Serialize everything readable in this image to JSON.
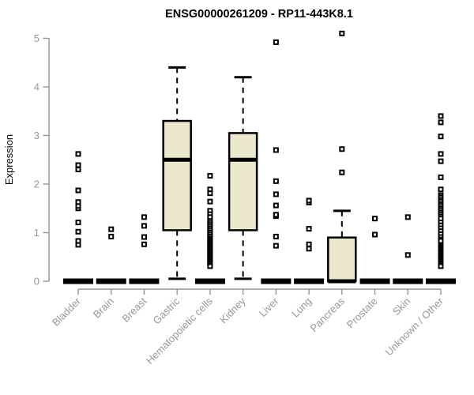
{
  "chart_data": {
    "type": "boxplot",
    "title": "ENSG00000261209 - RP11-443K8.1",
    "xlabel": "",
    "ylabel": "Expression",
    "ylim": [
      0,
      5
    ],
    "yticks": [
      0,
      1,
      2,
      3,
      4,
      5
    ],
    "grid": false,
    "legend": false,
    "categories": [
      "Bladder",
      "Brain",
      "Breast",
      "Gastric",
      "Hematopoietic cells",
      "Kidney",
      "Liver",
      "Lung",
      "Pancreas",
      "Prostate",
      "Skin",
      "Unknown / Other"
    ],
    "series": [
      {
        "name": "Bladder",
        "whisker_low": 0,
        "q1": 0,
        "median": 0,
        "q3": 0,
        "whisker_high": 0,
        "outliers": [
          0.75,
          0.83,
          1.02,
          1.21,
          1.5,
          1.55,
          1.63,
          1.87,
          2.3,
          2.39,
          2.62
        ]
      },
      {
        "name": "Brain",
        "whisker_low": 0,
        "q1": 0,
        "median": 0,
        "q3": 0,
        "whisker_high": 0,
        "outliers": [
          0.92,
          1.07
        ]
      },
      {
        "name": "Breast",
        "whisker_low": 0,
        "q1": 0,
        "median": 0,
        "q3": 0,
        "whisker_high": 0,
        "outliers": [
          0.76,
          0.91,
          1.14,
          1.32
        ]
      },
      {
        "name": "Gastric",
        "whisker_low": 0.05,
        "q1": 1.05,
        "median": 2.5,
        "q3": 3.3,
        "whisker_high": 4.4,
        "outliers": []
      },
      {
        "name": "Hematopoietic cells",
        "whisker_low": 0,
        "q1": 0,
        "median": 0,
        "q3": 0,
        "whisker_high": 0,
        "outliers": [
          2.17,
          1.89,
          1.81,
          1.64,
          1.45,
          1.38,
          1.32,
          1.24,
          1.2,
          1.16,
          1.12,
          1.08,
          1.04,
          1.0,
          0.96,
          0.92,
          0.88,
          0.85,
          0.82,
          0.79,
          0.76,
          0.73,
          0.7,
          0.67,
          0.64,
          0.61,
          0.58,
          0.55,
          0.52,
          0.49,
          0.46,
          0.43,
          0.4,
          0.37,
          0.34,
          0.31
        ]
      },
      {
        "name": "Kidney",
        "whisker_low": 0.05,
        "q1": 1.05,
        "median": 2.5,
        "q3": 3.05,
        "whisker_high": 4.2,
        "outliers": []
      },
      {
        "name": "Liver",
        "whisker_low": 0,
        "q1": 0,
        "median": 0,
        "q3": 0,
        "whisker_high": 0,
        "outliers": [
          0.73,
          0.92,
          1.34,
          1.37,
          1.56,
          1.79,
          2.06,
          2.7,
          4.92
        ]
      },
      {
        "name": "Lung",
        "whisker_low": 0,
        "q1": 0,
        "median": 0,
        "q3": 0,
        "whisker_high": 0,
        "outliers": [
          0.67,
          0.76,
          1.08,
          1.62,
          1.66
        ]
      },
      {
        "name": "Pancreas",
        "whisker_low": 0,
        "q1": 0,
        "median": 0,
        "q3": 0.9,
        "whisker_high": 1.45,
        "outliers": [
          2.24,
          2.72,
          5.1
        ]
      },
      {
        "name": "Prostate",
        "whisker_low": 0,
        "q1": 0,
        "median": 0,
        "q3": 0,
        "whisker_high": 0,
        "outliers": [
          0.96,
          1.29
        ]
      },
      {
        "name": "Skin",
        "whisker_low": 0,
        "q1": 0,
        "median": 0,
        "q3": 0,
        "whisker_high": 0,
        "outliers": [
          0.54,
          1.32
        ]
      },
      {
        "name": "Unknown / Other",
        "whisker_low": 0,
        "q1": 0,
        "median": 0,
        "q3": 0,
        "whisker_high": 0,
        "outliers": [
          3.4,
          3.27,
          2.98,
          2.62,
          2.47,
          2.14,
          1.89,
          1.77,
          1.73,
          1.69,
          1.65,
          1.61,
          1.57,
          1.53,
          1.49,
          1.45,
          1.41,
          1.37,
          1.33,
          1.29,
          1.21,
          1.15,
          1.09,
          1.03,
          0.97,
          0.91,
          0.86,
          0.83,
          0.72,
          0.69,
          0.66,
          0.63,
          0.6,
          0.57,
          0.54,
          0.51,
          0.48,
          0.45,
          0.42,
          0.39,
          0.36,
          0.33,
          0.31
        ]
      }
    ],
    "colors": {
      "box_fill": "#ece8cd",
      "box_stroke": "#000000",
      "median": "#000000",
      "whisker": "#000000",
      "outlier_stroke": "#000000",
      "axis": "#949494",
      "tick_text": "#989898",
      "title_text": "#000000",
      "background": "#ffffff"
    }
  }
}
